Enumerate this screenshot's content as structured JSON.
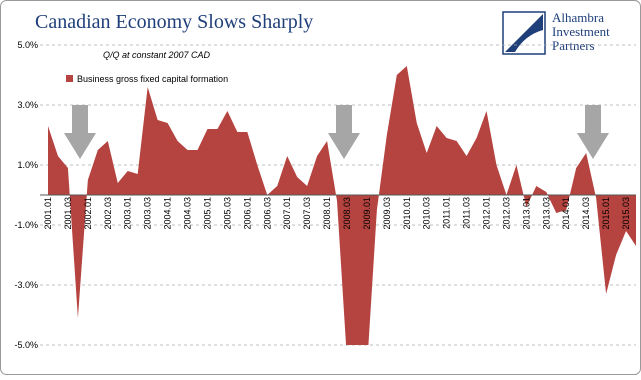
{
  "chart_data": {
    "type": "area",
    "title": "Canadian Economy Slows Sharply",
    "subtitle": "Q/Q at constant 2007 CAD",
    "logo": [
      "Alhambra",
      "Investment",
      "Partners"
    ],
    "categories": [
      "2001.01",
      null,
      "2001.03",
      null,
      "2002.01",
      null,
      "2002.03",
      null,
      "2003.01",
      null,
      "2003.03",
      null,
      "2004.01",
      null,
      "2004.03",
      null,
      "2005.01",
      null,
      "2005.03",
      null,
      "2006.01",
      null,
      "2006.03",
      null,
      "2007.01",
      null,
      "2007.03",
      null,
      "2008.01",
      null,
      "2008.03",
      null,
      "2009.01",
      null,
      "2009.03",
      null,
      "2010.01",
      null,
      "2010.03",
      null,
      "2011.01",
      null,
      "2011.03",
      null,
      "2012.01",
      null,
      "2012.03",
      null,
      "2013.01",
      null,
      "2013.03",
      null,
      "2014.01",
      null,
      "2014.03",
      null,
      "2015.01",
      null,
      "2015.03",
      null
    ],
    "series": [
      {
        "name": "Business gross fixed capital formation",
        "color": "#b5433f",
        "values": [
          2.3,
          1.3,
          0.9,
          -4.1,
          0.5,
          1.5,
          1.8,
          0.4,
          0.8,
          0.7,
          3.6,
          2.5,
          2.4,
          1.8,
          1.5,
          1.5,
          2.2,
          2.2,
          2.8,
          2.1,
          2.1,
          1.0,
          0.0,
          0.3,
          1.3,
          0.6,
          0.3,
          1.3,
          1.8,
          -0.2,
          -5.5,
          -6.5,
          -5.8,
          -0.5,
          2.0,
          4.0,
          4.3,
          2.4,
          1.4,
          2.3,
          1.9,
          1.8,
          1.3,
          1.9,
          2.8,
          1.0,
          0.0,
          1.0,
          -0.4,
          0.3,
          0.1,
          -0.6,
          -0.5,
          0.9,
          1.4,
          -0.1,
          -3.3,
          -2.0,
          -1.2,
          -1.7
        ]
      }
    ],
    "ylim": [
      -5,
      5
    ],
    "yticks": [
      {
        "value": -5,
        "label": "-5.0%"
      },
      {
        "value": -3,
        "label": "-3.0%"
      },
      {
        "value": -1,
        "label": "-1.0%"
      },
      {
        "value": 1,
        "label": "1.0%"
      },
      {
        "value": 3,
        "label": "3.0%"
      },
      {
        "value": 5,
        "label": "5.0%"
      }
    ],
    "grid": true,
    "legend": "upper left"
  }
}
